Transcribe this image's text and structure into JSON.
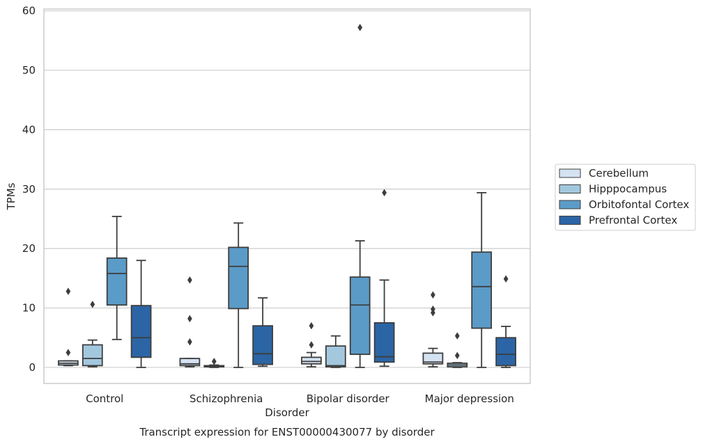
{
  "caption": "Transcript expression for ENST00000430077 by disorder",
  "chart_data": {
    "type": "box",
    "xlabel": "Disorder",
    "ylabel": "TPMs",
    "ylim": [
      -2.7,
      60.3
    ],
    "yticks": [
      0,
      10,
      20,
      30,
      40,
      50,
      60
    ],
    "grid": "horizontal",
    "legend_position": "right",
    "categories": [
      "Control",
      "Schizophrenia",
      "Bipolar disorder",
      "Major depression"
    ],
    "series": [
      {
        "name": "Cerebellum",
        "color": "#d4e2f2",
        "boxes": [
          {
            "whisker_low": 0.3,
            "q1": 0.4,
            "median": 0.7,
            "q3": 1.1,
            "whisker_high": 1.1,
            "outliers": [
              2.5,
              12.8
            ]
          },
          {
            "whisker_low": 0.1,
            "q1": 0.3,
            "median": 0.6,
            "q3": 1.5,
            "whisker_high": 1.5,
            "outliers": [
              4.3,
              8.2,
              14.7
            ]
          },
          {
            "whisker_low": 0.1,
            "q1": 0.6,
            "median": 1.0,
            "q3": 1.7,
            "whisker_high": 2.5,
            "outliers": [
              3.8,
              7.0
            ]
          },
          {
            "whisker_low": 0.1,
            "q1": 0.6,
            "median": 0.9,
            "q3": 2.4,
            "whisker_high": 3.2,
            "outliers": [
              9.2,
              9.8,
              12.2
            ]
          }
        ]
      },
      {
        "name": "Hipppocampus",
        "color": "#a3c8de",
        "boxes": [
          {
            "whisker_low": 0.1,
            "q1": 0.3,
            "median": 1.5,
            "q3": 3.8,
            "whisker_high": 4.6,
            "outliers": [
              10.6
            ]
          },
          {
            "whisker_low": 0.0,
            "q1": 0.1,
            "median": 0.2,
            "q3": 0.3,
            "whisker_high": 0.4,
            "outliers": [
              1.0
            ]
          },
          {
            "whisker_low": 0.0,
            "q1": 0.1,
            "median": 0.3,
            "q3": 3.6,
            "whisker_high": 5.3,
            "outliers": []
          },
          {
            "whisker_low": 0.0,
            "q1": 0.1,
            "median": 0.4,
            "q3": 0.7,
            "whisker_high": 0.8,
            "outliers": [
              2.0,
              5.3
            ]
          }
        ]
      },
      {
        "name": "Orbitofontal Cortex",
        "color": "#5b9bc8",
        "boxes": [
          {
            "whisker_low": 4.7,
            "q1": 10.5,
            "median": 15.8,
            "q3": 18.4,
            "whisker_high": 25.4,
            "outliers": []
          },
          {
            "whisker_low": 0.0,
            "q1": 9.9,
            "median": 17.0,
            "q3": 20.2,
            "whisker_high": 24.3,
            "outliers": []
          },
          {
            "whisker_low": 0.0,
            "q1": 2.2,
            "median": 10.5,
            "q3": 15.2,
            "whisker_high": 21.3,
            "outliers": [
              57.2
            ]
          },
          {
            "whisker_low": 0.0,
            "q1": 6.6,
            "median": 13.6,
            "q3": 19.4,
            "whisker_high": 29.4,
            "outliers": []
          }
        ]
      },
      {
        "name": "Prefrontal Cortex",
        "color": "#2b65a5",
        "boxes": [
          {
            "whisker_low": 0.0,
            "q1": 1.7,
            "median": 5.0,
            "q3": 10.4,
            "whisker_high": 18.0,
            "outliers": []
          },
          {
            "whisker_low": 0.2,
            "q1": 0.5,
            "median": 2.3,
            "q3": 7.0,
            "whisker_high": 11.7,
            "outliers": []
          },
          {
            "whisker_low": 0.2,
            "q1": 0.9,
            "median": 1.8,
            "q3": 7.5,
            "whisker_high": 14.7,
            "outliers": [
              29.4
            ]
          },
          {
            "whisker_low": 0.0,
            "q1": 0.3,
            "median": 2.2,
            "q3": 5.0,
            "whisker_high": 6.9,
            "outliers": [
              14.9
            ]
          }
        ]
      }
    ]
  }
}
